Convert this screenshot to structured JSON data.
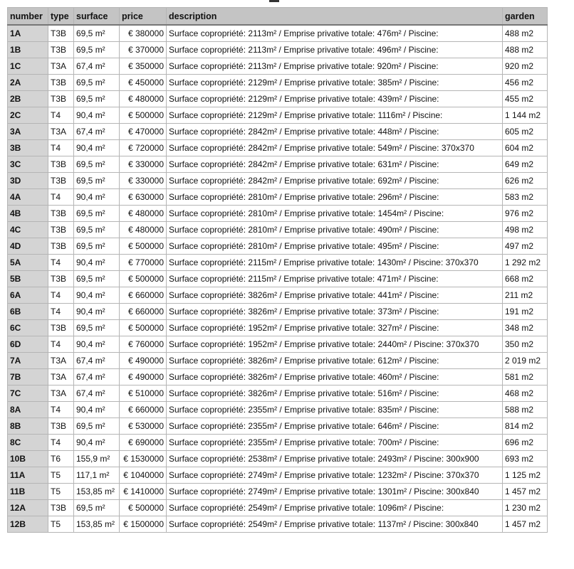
{
  "table": {
    "headers": [
      "number",
      "type",
      "surface",
      "price",
      "description",
      "garden"
    ],
    "rows": [
      [
        "1A",
        "T3B",
        "69,5 m²",
        "€ 380000",
        "Surface copropriété: 2113m² / Emprise privative totale: 476m² / Piscine:",
        "488 m2"
      ],
      [
        "1B",
        "T3B",
        "69,5 m²",
        "€ 370000",
        "Surface copropriété: 2113m² / Emprise privative totale: 496m² / Piscine:",
        "488 m2"
      ],
      [
        "1C",
        "T3A",
        "67,4 m²",
        "€ 350000",
        "Surface copropriété: 2113m² / Emprise privative totale: 920m² / Piscine:",
        "920 m2"
      ],
      [
        "2A",
        "T3B",
        "69,5 m²",
        "€ 450000",
        "Surface copropriété: 2129m² / Emprise privative totale: 385m² / Piscine:",
        "456 m2"
      ],
      [
        "2B",
        "T3B",
        "69,5 m²",
        "€ 480000",
        "Surface copropriété: 2129m² / Emprise privative totale: 439m² / Piscine:",
        "455 m2"
      ],
      [
        "2C",
        "T4",
        "90,4 m²",
        "€ 500000",
        "Surface copropriété: 2129m² / Emprise privative totale: 1116m² / Piscine:",
        "1 144 m2"
      ],
      [
        "3A",
        "T3A",
        "67,4 m²",
        "€ 470000",
        "Surface copropriété: 2842m² / Emprise privative totale: 448m² / Piscine:",
        "605 m2"
      ],
      [
        "3B",
        "T4",
        "90,4 m²",
        "€ 720000",
        "Surface copropriété: 2842m² / Emprise privative totale: 549m² / Piscine: 370x370",
        "604 m2"
      ],
      [
        "3C",
        "T3B",
        "69,5 m²",
        "€ 330000",
        "Surface copropriété: 2842m² / Emprise privative totale: 631m² / Piscine:",
        "649 m2"
      ],
      [
        "3D",
        "T3B",
        "69,5 m²",
        "€ 330000",
        "Surface copropriété: 2842m² / Emprise privative totale: 692m² / Piscine:",
        "626 m2"
      ],
      [
        "4A",
        "T4",
        "90,4 m²",
        "€ 630000",
        "Surface copropriété: 2810m² / Emprise privative totale: 296m² / Piscine:",
        "583 m2"
      ],
      [
        "4B",
        "T3B",
        "69,5 m²",
        "€ 480000",
        "Surface copropriété: 2810m² / Emprise privative totale: 1454m² / Piscine:",
        "976 m2"
      ],
      [
        "4C",
        "T3B",
        "69,5 m²",
        "€ 480000",
        "Surface copropriété: 2810m² / Emprise privative totale: 490m² / Piscine:",
        "498 m2"
      ],
      [
        "4D",
        "T3B",
        "69,5 m²",
        "€ 500000",
        "Surface copropriété: 2810m² / Emprise privative totale: 495m² / Piscine:",
        "497 m2"
      ],
      [
        "5A",
        "T4",
        "90,4 m²",
        "€ 770000",
        "Surface copropriété: 2115m² / Emprise privative totale: 1430m² / Piscine: 370x370",
        "1 292 m2"
      ],
      [
        "5B",
        "T3B",
        "69,5 m²",
        "€ 500000",
        "Surface copropriété: 2115m² / Emprise privative totale: 471m² / Piscine:",
        "668 m2"
      ],
      [
        "6A",
        "T4",
        "90,4 m²",
        "€ 660000",
        "Surface copropriété: 3826m² / Emprise privative totale: 441m² / Piscine:",
        "211 m2"
      ],
      [
        "6B",
        "T4",
        "90,4 m²",
        "€ 660000",
        "Surface copropriété: 3826m² / Emprise privative totale: 373m² / Piscine:",
        "191 m2"
      ],
      [
        "6C",
        "T3B",
        "69,5 m²",
        "€ 500000",
        "Surface copropriété: 1952m² / Emprise privative totale: 327m² / Piscine:",
        "348 m2"
      ],
      [
        "6D",
        "T4",
        "90,4 m²",
        "€ 760000",
        "Surface copropriété: 1952m² / Emprise privative totale: 2440m² / Piscine: 370x370",
        "350 m2"
      ],
      [
        "7A",
        "T3A",
        "67,4 m²",
        "€ 490000",
        "Surface copropriété: 3826m² / Emprise privative totale: 612m² / Piscine:",
        "2 019 m2"
      ],
      [
        "7B",
        "T3A",
        "67,4 m²",
        "€ 490000",
        "Surface copropriété: 3826m² / Emprise privative totale: 460m² / Piscine:",
        "581 m2"
      ],
      [
        "7C",
        "T3A",
        "67,4 m²",
        "€ 510000",
        "Surface copropriété: 3826m² / Emprise privative totale: 516m² / Piscine:",
        "468 m2"
      ],
      [
        "8A",
        "T4",
        "90,4 m²",
        "€ 660000",
        "Surface copropriété: 2355m² / Emprise privative totale: 835m² / Piscine:",
        "588 m2"
      ],
      [
        "8B",
        "T3B",
        "69,5 m²",
        "€ 530000",
        "Surface copropriété: 2355m² / Emprise privative totale: 646m² / Piscine:",
        "814 m2"
      ],
      [
        "8C",
        "T4",
        "90,4 m²",
        "€ 690000",
        "Surface copropriété: 2355m² / Emprise privative totale: 700m² / Piscine:",
        "696 m2"
      ],
      [
        "10B",
        "T6",
        "155,9 m²",
        "€ 1530000",
        "Surface copropriété: 2538m² / Emprise privative totale: 2493m² / Piscine: 300x900",
        "693 m2"
      ],
      [
        "11A",
        "T5",
        "117,1 m²",
        "€ 1040000",
        "Surface copropriété: 2749m² / Emprise privative totale: 1232m² / Piscine: 370x370",
        "1 125 m2"
      ],
      [
        "11B",
        "T5",
        "153,85 m²",
        "€ 1410000",
        "Surface copropriété: 2749m² / Emprise privative totale: 1301m² / Piscine: 300x840",
        "1 457 m2"
      ],
      [
        "12A",
        "T3B",
        "69,5 m²",
        "€ 500000",
        "Surface copropriété: 2549m² / Emprise privative totale: 1096m² / Piscine:",
        "1 230 m2"
      ],
      [
        "12B",
        "T5",
        "153,85 m²",
        "€ 1500000",
        "Surface copropriété: 2549m² / Emprise privative totale: 1137m² / Piscine: 300x840",
        "1 457 m2"
      ]
    ]
  }
}
